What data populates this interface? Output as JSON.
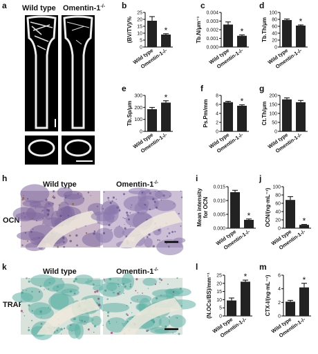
{
  "chart_data": [
    {
      "type": "bar",
      "panel": "b",
      "ylabel": [
        "(BV/TV)/%"
      ],
      "categories": [
        "Wild type",
        "Omentin-1-/-"
      ],
      "values": [
        19,
        9
      ],
      "errors": [
        3,
        0.6
      ],
      "color": "#222222",
      "ylim": [
        0,
        25
      ],
      "yticks": [
        0,
        5,
        10,
        15,
        20,
        25
      ],
      "annotation": "*"
    },
    {
      "type": "bar",
      "panel": "c",
      "ylabel": [
        "Tb.N/μm⁻¹"
      ],
      "categories": [
        "Wild type",
        "Omentin-1-/-"
      ],
      "values": [
        0.0026,
        0.0013
      ],
      "errors": [
        0.0003,
        0.0001
      ],
      "color": "#222222",
      "ylim": [
        0,
        0.004
      ],
      "yticks": [
        {
          "value": 0,
          "label": "0.000"
        },
        {
          "value": 0.001,
          "label": "0.001"
        },
        {
          "value": 0.002,
          "label": "0.002"
        },
        {
          "value": 0.003,
          "label": "0.003"
        },
        {
          "value": 0.004,
          "label": "0.004"
        }
      ],
      "annotation": "*"
    },
    {
      "type": "bar",
      "panel": "d",
      "ylabel": [
        "Tb.Th/μm"
      ],
      "categories": [
        "Wild type",
        "Omentin-1-/-"
      ],
      "values": [
        78,
        62
      ],
      "errors": [
        3,
        2
      ],
      "color": "#222222",
      "ylim": [
        0,
        100
      ],
      "yticks": [
        0,
        20,
        40,
        60,
        80,
        100
      ],
      "annotation": "*"
    },
    {
      "type": "bar",
      "panel": "e",
      "ylabel": [
        "Tb.Sp/μm"
      ],
      "categories": [
        "Wild type",
        "Omentin-1-/-"
      ],
      "values": [
        185,
        240
      ],
      "errors": [
        15,
        15
      ],
      "color": "#222222",
      "ylim": [
        0,
        300
      ],
      "yticks": [
        0,
        100,
        200,
        300
      ],
      "annotation": "*"
    },
    {
      "type": "bar",
      "panel": "f",
      "ylabel": [
        "Ps.Pm/mm"
      ],
      "categories": [
        "Wild type",
        "Omentin-1-/-"
      ],
      "values": [
        6.5,
        5.7
      ],
      "errors": [
        0.2,
        0.2
      ],
      "color": "#222222",
      "ylim": [
        0,
        8
      ],
      "yticks": [
        0,
        2,
        4,
        6,
        8
      ],
      "annotation": "*"
    },
    {
      "type": "bar",
      "panel": "g",
      "ylabel": [
        "Ct.Th/μm"
      ],
      "categories": [
        "Wild type",
        "Omentin-1-/-"
      ],
      "values": [
        178,
        162
      ],
      "errors": [
        8,
        10
      ],
      "color": "#222222",
      "ylim": [
        0,
        200
      ],
      "yticks": [
        0,
        50,
        100,
        150,
        200
      ]
    },
    {
      "type": "bar",
      "panel": "i",
      "ylabel": [
        "Mean intensity",
        "for OCN"
      ],
      "categories": [
        "Wild type",
        "Omentin-1-/-"
      ],
      "values": [
        0.013,
        0.003
      ],
      "errors": [
        0.0007,
        0.0003
      ],
      "color": "#222222",
      "ylim": [
        0,
        0.015
      ],
      "yticks": [
        {
          "value": 0,
          "label": "0.000"
        },
        {
          "value": 0.005,
          "label": "0.005"
        },
        {
          "value": 0.01,
          "label": "0.010"
        },
        {
          "value": 0.015,
          "label": "0.015"
        }
      ],
      "annotation": "*"
    },
    {
      "type": "bar",
      "panel": "j",
      "ylabel": [
        "OCN/(ng·mL⁻¹)"
      ],
      "categories": [
        "Wild type",
        "Omentin-1-/-"
      ],
      "values": [
        68,
        8
      ],
      "errors": [
        8,
        1
      ],
      "color": "#222222",
      "ylim": [
        0,
        100
      ],
      "yticks": [
        0,
        20,
        40,
        60,
        80,
        100
      ],
      "annotation": "*"
    },
    {
      "type": "bar",
      "panel": "l",
      "ylabel": [
        "(N.OCs/BS)/mm⁻¹"
      ],
      "categories": [
        "Wild type",
        "Omentin-1-/-"
      ],
      "values": [
        9.5,
        21
      ],
      "errors": [
        1.5,
        1
      ],
      "color": "#222222",
      "ylim": [
        0,
        25
      ],
      "yticks": [
        0,
        5,
        10,
        15,
        20,
        25
      ],
      "annotation": "*"
    },
    {
      "type": "bar",
      "panel": "m",
      "ylabel": [
        "CTX-I/(ng·mL⁻¹)"
      ],
      "categories": [
        "Wild type",
        "Omentin-1-/-"
      ],
      "values": [
        2.1,
        4.2
      ],
      "errors": [
        0.2,
        0.6
      ],
      "color": "#222222",
      "ylim": [
        0,
        6
      ],
      "yticks": [
        0,
        2,
        4,
        6
      ],
      "annotation": "*"
    }
  ],
  "figure": {
    "a": {
      "panel": "a",
      "labels": [
        {
          "text": "Wild type"
        },
        {
          "text": "Omentin-1",
          "sup": "-/-"
        }
      ]
    },
    "h": {
      "panel": "h",
      "labels": [
        {
          "text": "Wild type"
        },
        {
          "text": "Omentin-1",
          "sup": "-/-"
        }
      ],
      "stain": "OCN"
    },
    "k": {
      "panel": "k",
      "labels": [
        {
          "text": "Wild type"
        },
        {
          "text": "Omentin-1",
          "sup": "-/-"
        }
      ],
      "stain": "TRAP"
    }
  }
}
